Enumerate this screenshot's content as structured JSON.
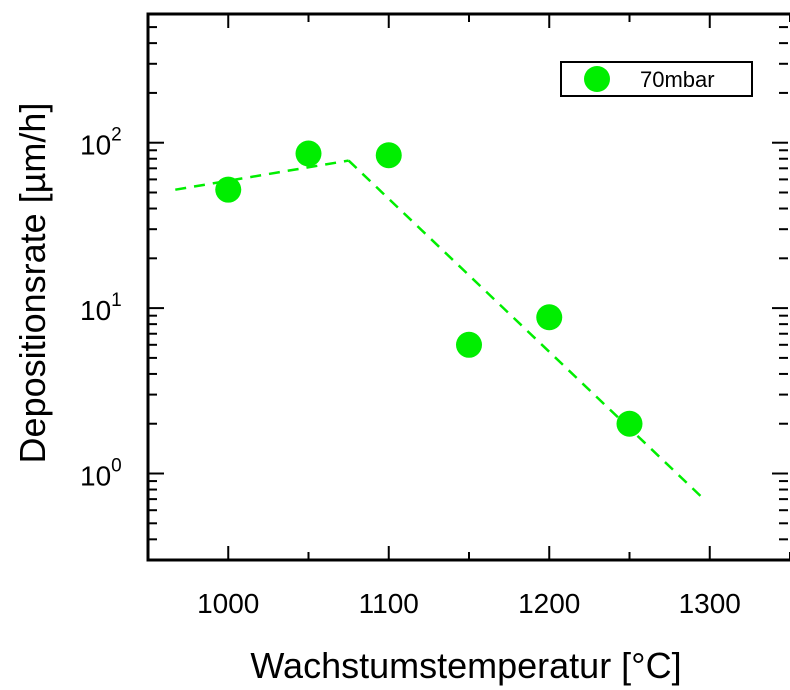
{
  "chart_data": {
    "type": "scatter",
    "xlabel": "Wachstumstemperatur [°C]",
    "ylabel": "Depositionsrate [µm/h]",
    "yscale": "log",
    "xlim": [
      950,
      1350
    ],
    "ylim": [
      0.3,
      600
    ],
    "xticks": [
      1000,
      1100,
      1200,
      1300
    ],
    "yticks": [
      {
        "value": 1,
        "base": "10",
        "exp": "0"
      },
      {
        "value": 10,
        "base": "10",
        "exp": "1"
      },
      {
        "value": 100,
        "base": "10",
        "exp": "2"
      }
    ],
    "legend": {
      "position": "top-right",
      "entries": [
        "70mbar"
      ]
    },
    "series": [
      {
        "name": "70mbar",
        "color": "#00ee00",
        "marker": "circle",
        "x": [
          1000,
          1050,
          1100,
          1150,
          1200,
          1250
        ],
        "y": [
          52,
          86,
          84,
          6,
          8.8,
          2
        ]
      }
    ],
    "fit_lines": [
      {
        "color": "#00ee00",
        "style": "dashed",
        "x": [
          967,
          1075
        ],
        "y": [
          52,
          78
        ]
      },
      {
        "color": "#00ee00",
        "style": "dashed",
        "x": [
          1075,
          1295
        ],
        "y": [
          78,
          0.72
        ]
      }
    ]
  }
}
